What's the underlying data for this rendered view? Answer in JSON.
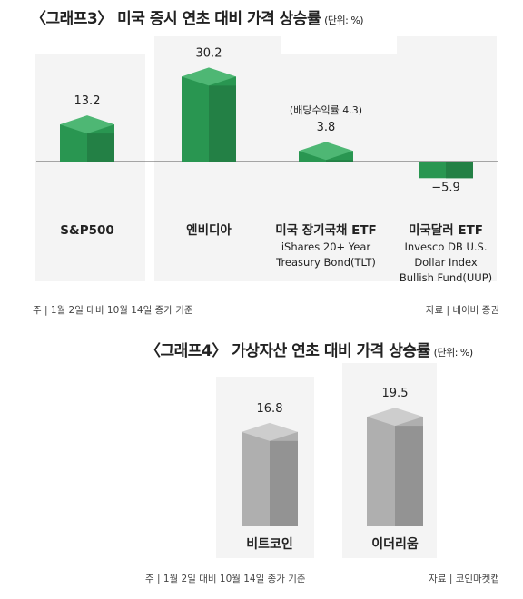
{
  "chart_data": [
    {
      "type": "bar",
      "title": "〈그래프3〉 미국 증시 연초 대비 가격 상승률",
      "unit": "(단위: %)",
      "categories": [
        {
          "label": "S&P500",
          "sublabel": ""
        },
        {
          "label": "엔비디아",
          "sublabel": ""
        },
        {
          "label": "미국 장기국채 ETF",
          "sublabel": "iShares 20+ Year\nTreasury Bond(TLT)"
        },
        {
          "label": "미국달러 ETF",
          "sublabel": "Invesco DB U.S.\nDollar Index\nBullish Fund(UUP)"
        }
      ],
      "values": [
        13.2,
        30.2,
        3.8,
        -5.9
      ],
      "value_labels": [
        "13.2",
        "30.2",
        "3.8",
        "−5.9"
      ],
      "annotation": "(배당수익률 4.3)",
      "bar_color": "#2faa5c",
      "note": "주 | 1월 2일 대비 10월 14일 종가 기준",
      "source": "자료 | 네이버 증권"
    },
    {
      "type": "bar",
      "title": "〈그래프4〉 가상자산 연초 대비 가격 상승률",
      "unit": "(단위: %)",
      "categories": [
        {
          "label": "비트코인",
          "sublabel": ""
        },
        {
          "label": "이더리움",
          "sublabel": ""
        }
      ],
      "values": [
        16.8,
        19.5
      ],
      "value_labels": [
        "16.8",
        "19.5"
      ],
      "bar_color": "#b8b8b8",
      "note": "주 | 1월 2일 대비 10월 14일 종가 기준",
      "source": "자료 | 코인마켓캡"
    }
  ]
}
